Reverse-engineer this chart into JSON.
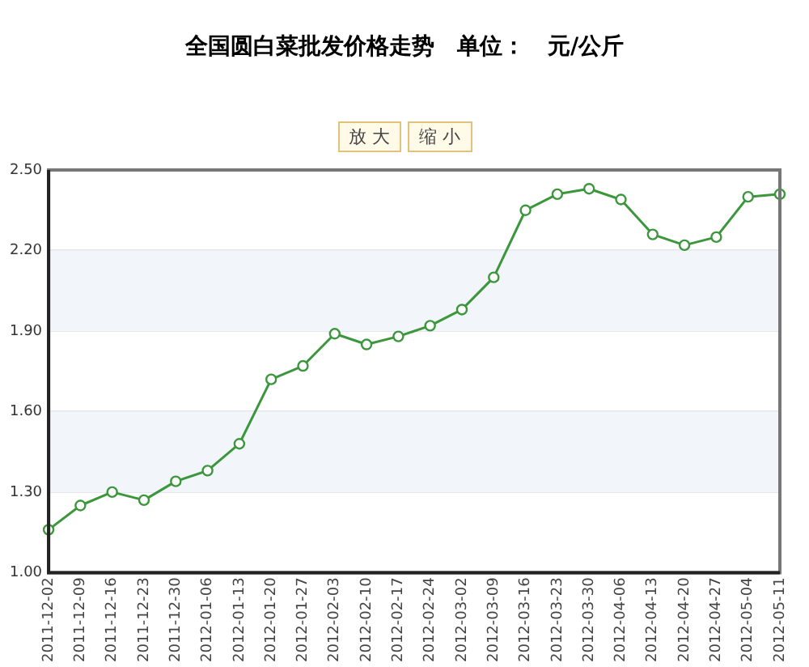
{
  "chart_data": {
    "type": "line",
    "title": "全国圆白菜批发价格走势　单位：　元/公斤",
    "annotations": [
      "放 大",
      "缩 小"
    ],
    "categories": [
      "2011-12-02",
      "2011-12-09",
      "2011-12-16",
      "2011-12-23",
      "2011-12-30",
      "2012-01-06",
      "2012-01-13",
      "2012-01-20",
      "2012-01-27",
      "2012-02-03",
      "2012-02-10",
      "2012-02-17",
      "2012-02-24",
      "2012-03-02",
      "2012-03-09",
      "2012-03-16",
      "2012-03-23",
      "2012-03-30",
      "2012-04-06",
      "2012-04-13",
      "2012-04-20",
      "2012-04-27",
      "2012-05-04",
      "2012-05-11"
    ],
    "series": [
      {
        "color": "#3c963c",
        "values": [
          1.16,
          1.25,
          1.3,
          1.27,
          1.34,
          1.38,
          1.48,
          1.72,
          1.77,
          1.89,
          1.85,
          1.88,
          1.92,
          1.98,
          2.1,
          2.35,
          2.41,
          2.43,
          2.39,
          2.26,
          2.22,
          2.25,
          2.4,
          2.41
        ]
      }
    ],
    "ylim": [
      1.0,
      2.5
    ],
    "yticks": [
      {
        "value": 1.0,
        "label": "1.00"
      },
      {
        "value": 1.3,
        "label": "1.30"
      },
      {
        "value": 1.6,
        "label": "1.60"
      },
      {
        "value": 1.9,
        "label": "1.90"
      },
      {
        "value": 2.2,
        "label": "2.20"
      },
      {
        "value": 2.5,
        "label": "2.50"
      }
    ],
    "bands": [
      {
        "axis": "y",
        "from": 1.3,
        "to": 1.6,
        "color": "#f2f6fb"
      },
      {
        "axis": "y",
        "from": 1.9,
        "to": 2.2,
        "color": "#f2f6fb"
      }
    ],
    "grid": "y",
    "legend": false,
    "marker": "circle",
    "line_style": "solid"
  }
}
